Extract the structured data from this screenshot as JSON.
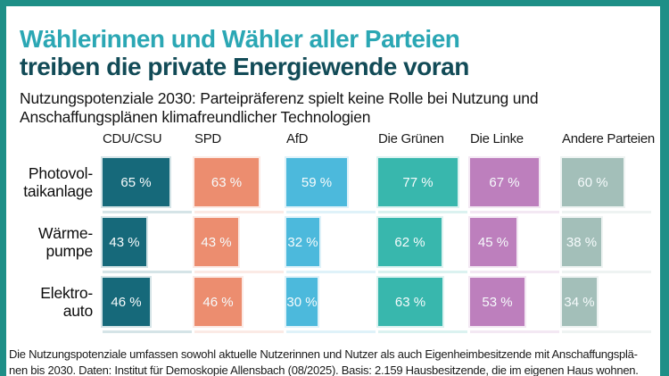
{
  "frame": {
    "border_color": "#1E8F87",
    "background": "#FFFFFF"
  },
  "title": {
    "line1": "Wählerinnen und Wähler aller Parteien",
    "line1_color": "#2BA7B4",
    "line2": "treiben die private Energiewende voran",
    "line2_color": "#124B57"
  },
  "subtitle": {
    "line1": "Nutzungspotenziale 2030: Parteipräferenz spielt keine Rolle bei Nutzung und",
    "line2": "Anschaffungsplänen klimafreundlicher Technologien"
  },
  "chart_data": {
    "type": "bar",
    "unit": "%",
    "value_label_format": "{v} %",
    "categories": [
      "CDU/CSU",
      "SPD",
      "AfD",
      "Die Grünen",
      "Die Linke",
      "Andere Parteien"
    ],
    "category_colors": [
      "#16697A",
      "#EC8D6F",
      "#4CB9DC",
      "#38B7AD",
      "#BD7FBD",
      "#A3BFB9"
    ],
    "category_track_colors": [
      "#D5E4E7",
      "#FBEAE5",
      "#DFF2F9",
      "#DBF2F0",
      "#F3E8F3",
      "#EEF3F2"
    ],
    "value_text_color": "#F6FBFC",
    "rows": [
      {
        "label": "Photovoltaikanlage",
        "label_lines": [
          "Photovol-",
          "taikanlage"
        ],
        "values": [
          65,
          63,
          59,
          77,
          67,
          60
        ]
      },
      {
        "label": "Wärmepumpe",
        "label_lines": [
          "Wärme-",
          "pumpe"
        ],
        "values": [
          43,
          43,
          32,
          62,
          45,
          38
        ]
      },
      {
        "label": "Elektroauto",
        "label_lines": [
          "Elektro-",
          "auto"
        ],
        "values": [
          46,
          46,
          30,
          63,
          53,
          34
        ]
      }
    ],
    "xlim": [
      0,
      100
    ],
    "grid": false,
    "legend": "none"
  },
  "footer": {
    "line1": "Die Nutzungspotenziale umfassen sowohl aktuelle Nutzerinnen und Nutzer als auch Eigenheimbesitzende mit Anschaffungsplä-",
    "line2": "nen bis 2030. Daten: Institut für Demoskopie Allensbach (08/2025). Basis: 2.159 Hausbesitzende, die im eigenen Haus wohnen."
  }
}
